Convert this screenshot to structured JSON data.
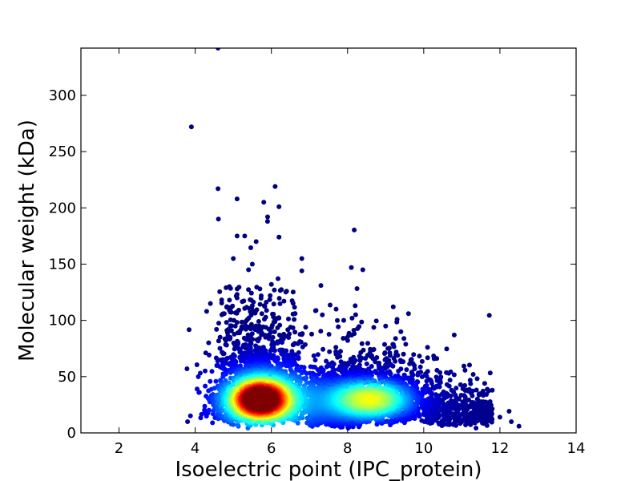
{
  "chart_data": {
    "type": "scatter",
    "title": "",
    "xlabel": "Isoelectric point (IPC_protein)",
    "ylabel": "Molecular weight (kDa)",
    "xlim": [
      1,
      14
    ],
    "ylim": [
      0,
      342
    ],
    "xticks": [
      2,
      4,
      6,
      8,
      10,
      12,
      14
    ],
    "yticks": [
      0,
      50,
      100,
      150,
      200,
      250,
      300
    ],
    "grid": false,
    "colormap": "jet (density)",
    "point_color_low": "#00008b",
    "point_color_high": "#8b0000",
    "density_clusters": [
      {
        "center_x": 5.7,
        "center_y": 30,
        "peak": "high"
      },
      {
        "center_x": 8.6,
        "center_y": 30,
        "peak": "medium"
      }
    ],
    "outliers": [
      {
        "x": 4.6,
        "y": 342
      },
      {
        "x": 3.9,
        "y": 272
      },
      {
        "x": 4.6,
        "y": 217
      },
      {
        "x": 6.1,
        "y": 219
      },
      {
        "x": 5.1,
        "y": 208
      },
      {
        "x": 5.8,
        "y": 205
      },
      {
        "x": 6.2,
        "y": 201
      },
      {
        "x": 5.9,
        "y": 188
      },
      {
        "x": 5.1,
        "y": 175
      },
      {
        "x": 5.3,
        "y": 175
      },
      {
        "x": 6.2,
        "y": 174
      },
      {
        "x": 5.6,
        "y": 170
      },
      {
        "x": 5.0,
        "y": 155
      },
      {
        "x": 6.8,
        "y": 155
      },
      {
        "x": 8.1,
        "y": 147
      },
      {
        "x": 8.4,
        "y": 145
      },
      {
        "x": 6.8,
        "y": 144
      },
      {
        "x": 7.3,
        "y": 131
      },
      {
        "x": 7.7,
        "y": 110
      },
      {
        "x": 8.2,
        "y": 113
      },
      {
        "x": 9.2,
        "y": 112
      },
      {
        "x": 9.6,
        "y": 106
      },
      {
        "x": 10.8,
        "y": 87
      },
      {
        "x": 10.1,
        "y": 76
      },
      {
        "x": 12.5,
        "y": 6
      },
      {
        "x": 12.3,
        "y": 10
      },
      {
        "x": 11.8,
        "y": 38
      },
      {
        "x": 3.8,
        "y": 10
      },
      {
        "x": 4.3,
        "y": 108
      },
      {
        "x": 4.4,
        "y": 115
      },
      {
        "x": 6.4,
        "y": 126
      },
      {
        "x": 5.5,
        "y": 150
      },
      {
        "x": 6.0,
        "y": 132
      },
      {
        "x": 5.4,
        "y": 145
      },
      {
        "x": 4.9,
        "y": 130
      },
      {
        "x": 4.7,
        "y": 105
      },
      {
        "x": 4.9,
        "y": 118
      },
      {
        "x": 5.1,
        "y": 120
      },
      {
        "x": 5.7,
        "y": 128
      },
      {
        "x": 5.5,
        "y": 113
      },
      {
        "x": 6.2,
        "y": 102
      },
      {
        "x": 6.9,
        "y": 94
      },
      {
        "x": 7.9,
        "y": 100
      },
      {
        "x": 9.0,
        "y": 95
      },
      {
        "x": 9.4,
        "y": 90
      },
      {
        "x": 11.3,
        "y": 52
      },
      {
        "x": 11.6,
        "y": 44
      },
      {
        "x": 12.0,
        "y": 14
      }
    ]
  }
}
